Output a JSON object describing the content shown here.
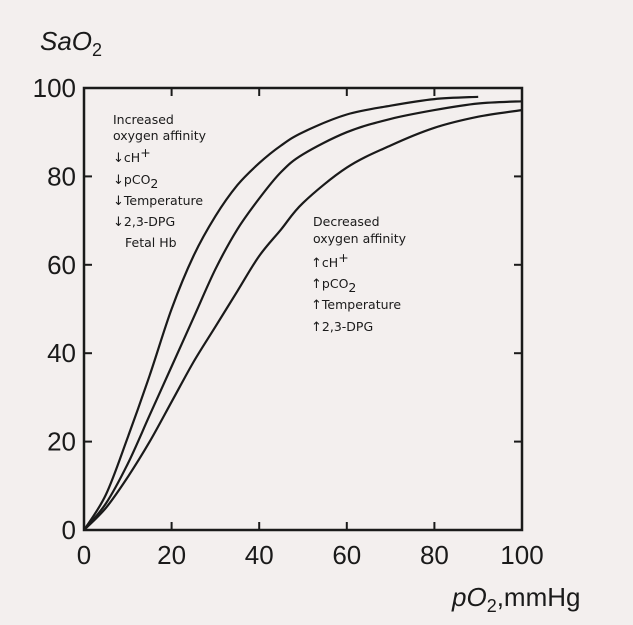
{
  "chart_data": {
    "type": "line",
    "ylabel_main": "SaO",
    "ylabel_sub": "2",
    "xlabel_main": "pO",
    "xlabel_sub": "2",
    "xlabel_unit": ",mmHg",
    "xlim": [
      0,
      100
    ],
    "ylim": [
      0,
      100
    ],
    "xticks": [
      0,
      20,
      40,
      60,
      80,
      100
    ],
    "yticks": [
      0,
      20,
      40,
      60,
      80,
      100
    ],
    "xtick_labels": [
      "0",
      "20",
      "40",
      "60",
      "80",
      "100"
    ],
    "ytick_labels": [
      "0",
      "20",
      "40",
      "60",
      "80",
      "100"
    ],
    "grid": false,
    "series": [
      {
        "x": [
          0,
          5,
          10,
          15,
          20,
          25,
          30,
          35,
          40,
          45,
          50,
          60,
          70,
          80,
          90
        ],
        "y": [
          0,
          8,
          21,
          35,
          50,
          62,
          71,
          78,
          83,
          87,
          90,
          94,
          96,
          97.5,
          98
        ]
      },
      {
        "x": [
          0,
          5,
          10,
          15,
          20,
          25,
          30,
          35,
          40,
          45,
          50,
          60,
          70,
          80,
          90,
          100
        ],
        "y": [
          0,
          6,
          15,
          26,
          37,
          48,
          59,
          68,
          75,
          81,
          85,
          90,
          93,
          95,
          96.5,
          97
        ]
      },
      {
        "x": [
          0,
          5,
          10,
          15,
          20,
          25,
          30,
          35,
          40,
          45,
          50,
          60,
          70,
          80,
          90,
          100
        ],
        "y": [
          0,
          5,
          12,
          20,
          29,
          38,
          46,
          54,
          62,
          68,
          74,
          82,
          87,
          91,
          93.5,
          95
        ]
      }
    ]
  },
  "annotations": {
    "increased": {
      "title1": "Increased",
      "title2": "oxygen affinity",
      "items": [
        {
          "arrow": "↓",
          "main": "cH",
          "sup": "+"
        },
        {
          "arrow": "↓",
          "main": "pCO",
          "sub": "2"
        },
        {
          "arrow": "↓",
          "main": "Temperature"
        },
        {
          "arrow": "↓",
          "main": "2,3-DPG"
        }
      ],
      "extra": "Fetal Hb"
    },
    "decreased": {
      "title1": "Decreased",
      "title2": "oxygen affinity",
      "items": [
        {
          "arrow": "↑",
          "main": "cH",
          "sup": "+"
        },
        {
          "arrow": "↑",
          "main": "pCO",
          "sub": "2"
        },
        {
          "arrow": "↑",
          "main": "Temperature"
        },
        {
          "arrow": "↑",
          "main": "2,3-DPG"
        }
      ]
    }
  }
}
